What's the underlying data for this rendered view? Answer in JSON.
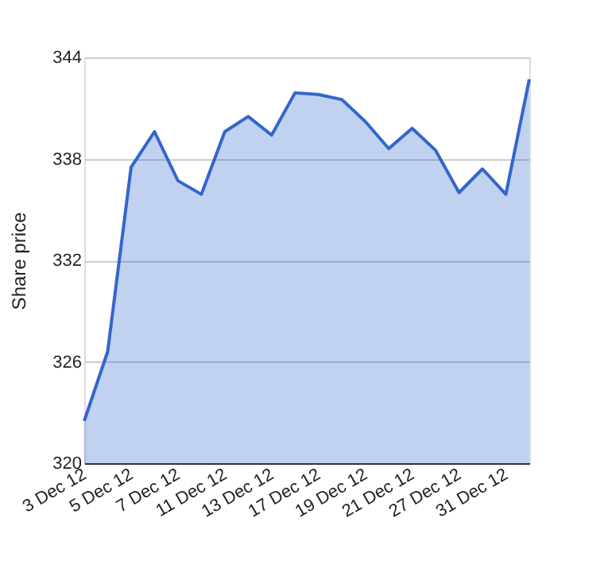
{
  "chart_data": {
    "type": "area",
    "ylabel": "Share price",
    "categories": [
      "3 Dec 12",
      null,
      "5 Dec 12",
      null,
      "7 Dec 12",
      null,
      "11 Dec 12",
      null,
      "13 Dec 12",
      null,
      "17 Dec 12",
      null,
      "19 Dec 12",
      null,
      "21 Dec 12",
      null,
      "27 Dec 12",
      null,
      "31 Dec 12",
      null
    ],
    "series": [
      {
        "color": "#3366cc",
        "values": [
          322.5,
          326.6,
          337.5,
          339.6,
          336.7,
          335.9,
          339.6,
          340.5,
          339.4,
          341.9,
          341.8,
          341.5,
          340.2,
          338.6,
          339.8,
          338.5,
          336.0,
          337.4,
          335.9,
          342.7
        ]
      }
    ],
    "ylim": [
      320,
      344
    ],
    "yticks": [
      320,
      326,
      332,
      338,
      344
    ],
    "grid": "y"
  }
}
